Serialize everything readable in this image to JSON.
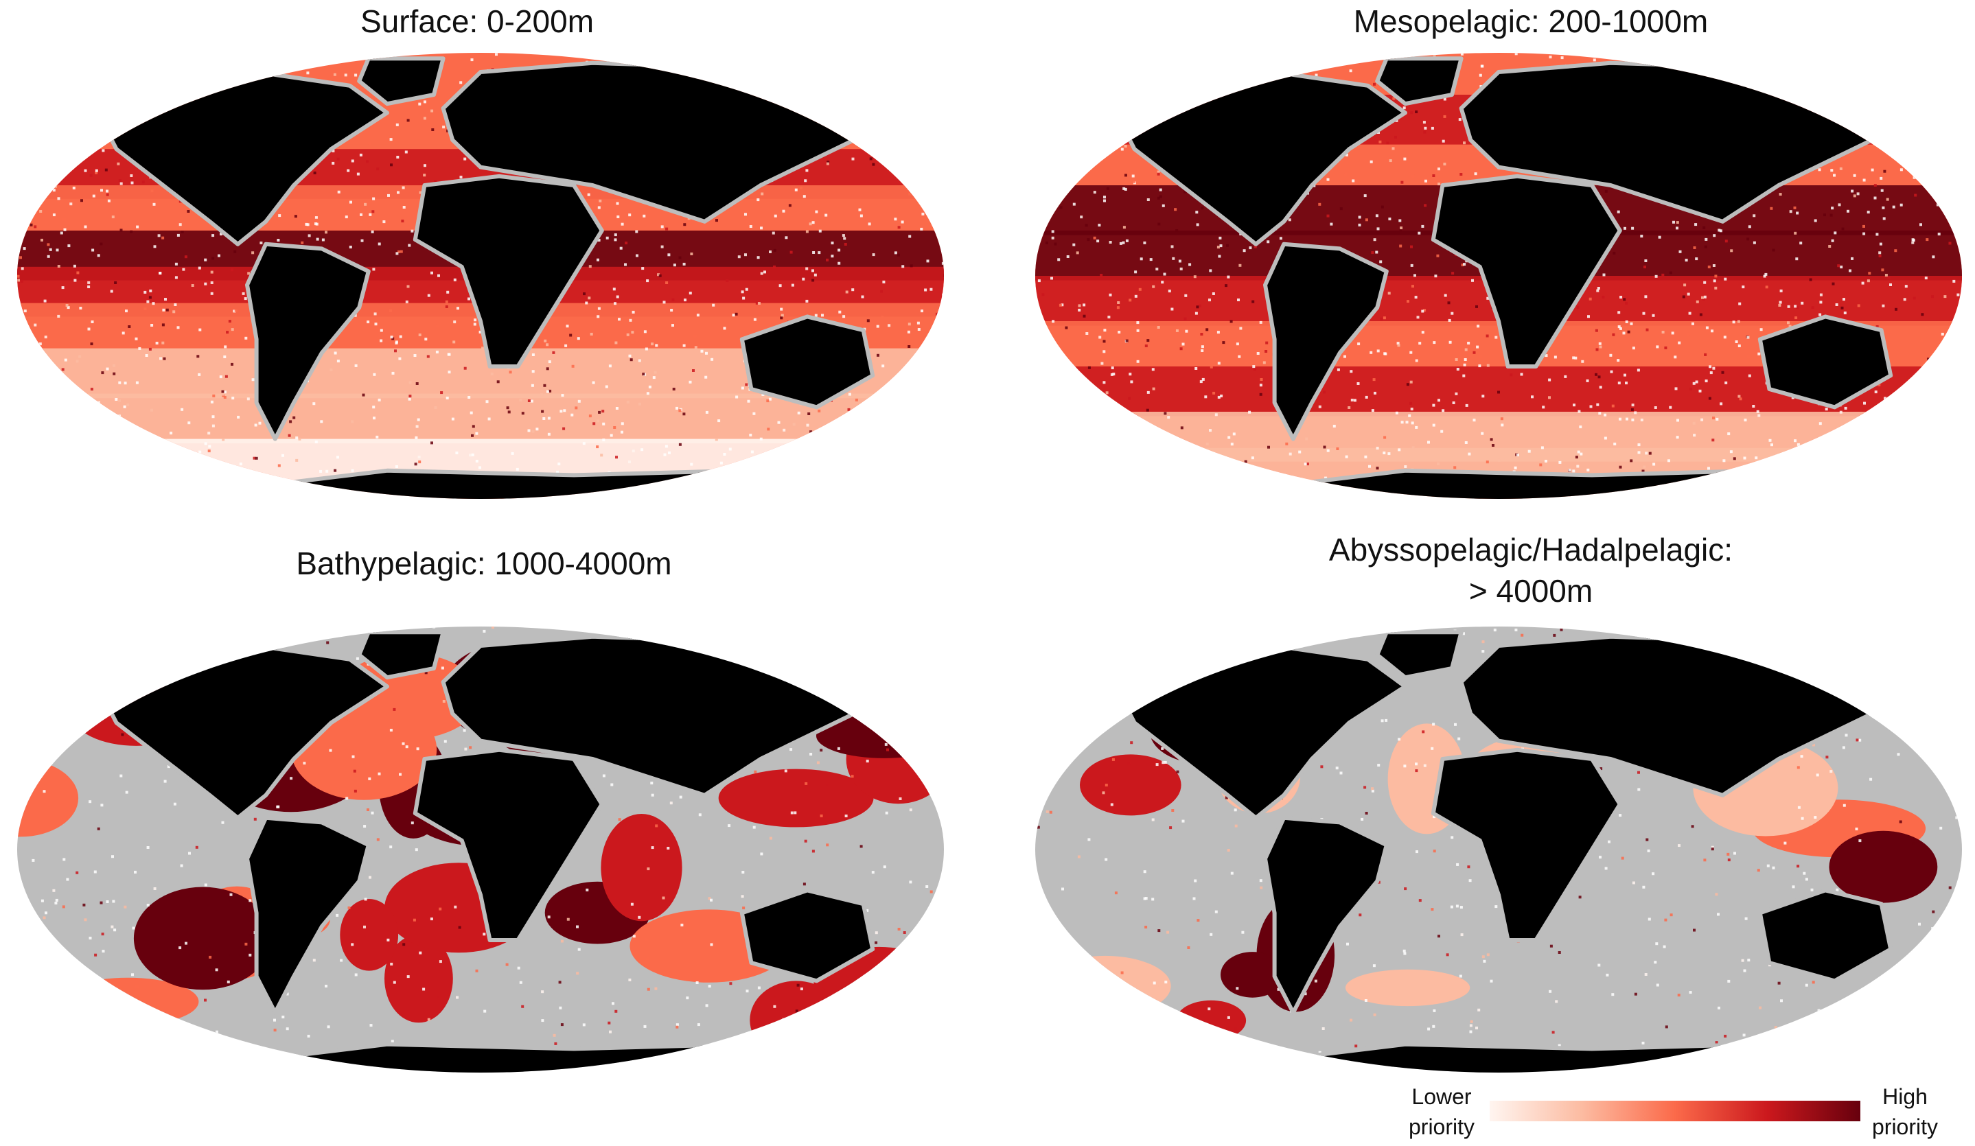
{
  "panels": [
    {
      "id": "surface",
      "title": "Surface: 0-200m"
    },
    {
      "id": "mesopelagic",
      "title": "Mesopelagic: 200-1000m"
    },
    {
      "id": "bathypelagic",
      "title": "Bathypelagic: 1000-4000m"
    },
    {
      "id": "abyssopelagic",
      "title_line1": "Abyssopelagic/Hadalpelagic:",
      "title_line2": "> 4000m"
    }
  ],
  "legend": {
    "low_label_line1": "Lower",
    "low_label_line2": "priority",
    "high_label_line1": "High",
    "high_label_line2": "priority",
    "colors": [
      "#fff5f0",
      "#fcbba1",
      "#fb6a4a",
      "#cb181d",
      "#67000d"
    ]
  },
  "colors": {
    "land": "#000000",
    "no_data": "#bdbdbd",
    "background": "#ffffff"
  }
}
